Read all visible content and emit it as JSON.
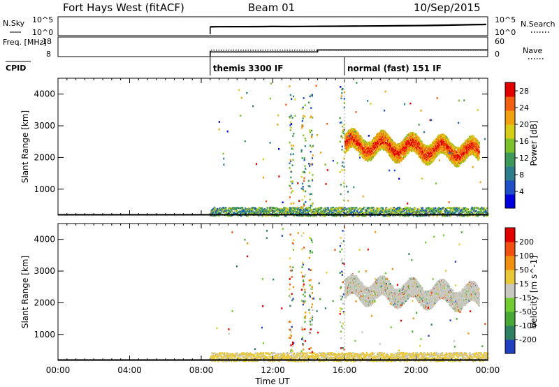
{
  "header": {
    "station": "Fort Hays West (fitACF)",
    "beam": "Beam 01",
    "date": "10/Sep/2015"
  },
  "chart_data": [
    {
      "type": "line",
      "panel": "noise",
      "left_label": "N.Sky",
      "right_label": "N.Search",
      "left_ticks": [
        "10^5",
        "10^0"
      ],
      "right_ticks": [
        "10^5",
        "10^0"
      ],
      "x": [
        "08:30",
        "09:00",
        "10:00",
        "11:00",
        "12:00",
        "13:00",
        "14:00",
        "15:00",
        "16:00",
        "17:00",
        "18:00",
        "19:00",
        "20:00",
        "21:00",
        "22:00",
        "23:00",
        "23:55"
      ],
      "series": [
        {
          "name": "N.Sky",
          "style": "solid",
          "values": [
            200,
            220,
            230,
            240,
            260,
            250,
            270,
            300,
            320,
            350,
            380,
            420,
            480,
            560,
            700,
            900,
            1100
          ]
        },
        {
          "name": "N.Search",
          "style": "dotted",
          "values": [
            260,
            280,
            300,
            310,
            330,
            320,
            340,
            380,
            400,
            430,
            470,
            520,
            600,
            700,
            850,
            1100,
            1400
          ]
        }
      ],
      "ylog": true
    },
    {
      "type": "line",
      "panel": "frequency_nave",
      "left_label": "Freq. [MHz]",
      "right_label": "Nave",
      "left_ticks": [
        "18",
        "8"
      ],
      "right_ticks": [
        "60",
        "0"
      ],
      "series": [
        {
          "name": "Freq.",
          "style": "solid",
          "steps": [
            [
              "08:30",
              10.6
            ],
            [
              "14:30",
              12.2
            ],
            [
              "00:00",
              12.2
            ]
          ]
        },
        {
          "name": "Nave",
          "style": "dotted",
          "steps": [
            [
              "08:30",
              12
            ],
            [
              "00:00",
              12
            ]
          ]
        }
      ]
    },
    {
      "type": "table",
      "panel": "cpid",
      "label": "CPID",
      "entries": [
        {
          "start": "08:30",
          "name": "themis 3300 IF"
        },
        {
          "start": "16:00",
          "name": "normal (fast) 151 IF"
        }
      ]
    },
    {
      "type": "heatmap",
      "panel": "power",
      "ylabel": "Slant Range [km]",
      "xlim": [
        "00:00",
        "24:00"
      ],
      "ylim": [
        180,
        4500
      ],
      "yticks": [
        1000,
        2000,
        3000,
        4000
      ],
      "colorbar": {
        "label": "Power [dB]",
        "ticks": [
          4,
          8,
          12,
          16,
          20,
          24,
          28
        ],
        "range": [
          0,
          30
        ],
        "colors": [
          "#0000dd",
          "#1f50c8",
          "#2f7d8c",
          "#3f9a5a",
          "#7cc02c",
          "#d6cc1a",
          "#f0a010",
          "#f06010",
          "#e00000"
        ]
      },
      "regions": [
        {
          "kind": "band",
          "start": "16:00",
          "end": "23:30",
          "center_km": 2450,
          "halfwidth_km": 300,
          "level": 18,
          "wave": "sinusoid-descending"
        },
        {
          "kind": "near_range",
          "start": "08:30",
          "end": "24:00",
          "range_km": [
            180,
            450
          ],
          "level": 12
        },
        {
          "kind": "columns",
          "times": [
            "13:00",
            "13:40",
            "14:05",
            "15:50"
          ],
          "level": 14
        }
      ]
    },
    {
      "type": "heatmap",
      "panel": "velocity",
      "ylabel": "Slant Range [km]",
      "xlabel": "Time UT",
      "xticks": [
        "00:00",
        "04:00",
        "08:00",
        "12:00",
        "16:00",
        "20:00",
        "00:00"
      ],
      "xlim": [
        "00:00",
        "24:00"
      ],
      "ylim": [
        180,
        4500
      ],
      "yticks": [
        1000,
        2000,
        3000,
        4000
      ],
      "colorbar": {
        "label": "Velocity [m s^-1]",
        "ticks": [
          200,
          100,
          50,
          15,
          -15,
          -50,
          -100,
          -200
        ],
        "range": [
          -250,
          250
        ],
        "colors": [
          "#2040c0",
          "#2f8060",
          "#48a838",
          "#70cc30",
          "#c8c8c0",
          "#e8c838",
          "#f09010",
          "#f05010",
          "#e00000"
        ]
      },
      "regions": [
        {
          "kind": "band",
          "start": "16:00",
          "end": "23:30",
          "center_km": 2450,
          "halfwidth_km": 300,
          "level": 0,
          "wave": "sinusoid-descending"
        },
        {
          "kind": "near_range",
          "start": "08:30",
          "end": "24:00",
          "range_km": [
            180,
            450
          ],
          "level": 40
        },
        {
          "kind": "columns",
          "times": [
            "13:00",
            "13:40",
            "14:05",
            "15:50"
          ],
          "level": 30
        }
      ]
    }
  ]
}
